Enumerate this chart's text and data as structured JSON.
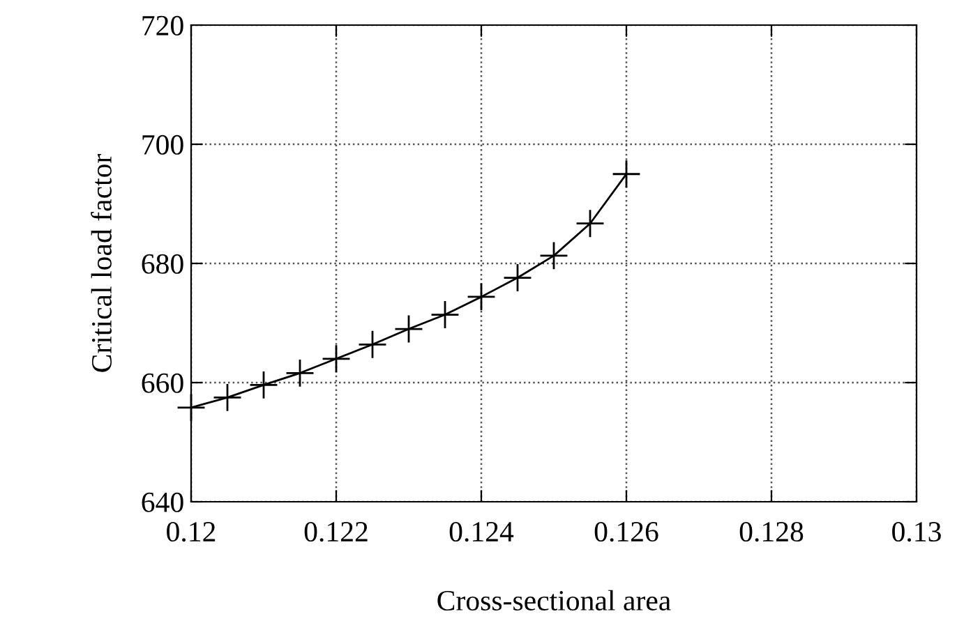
{
  "chart_data": {
    "type": "line",
    "xlabel": "Cross-sectional area",
    "ylabel": "Critical load factor",
    "x": [
      0.12,
      0.1205,
      0.121,
      0.1215,
      0.122,
      0.1225,
      0.123,
      0.1235,
      0.124,
      0.1245,
      0.125,
      0.1255,
      0.126
    ],
    "series": [
      {
        "color": "#000000",
        "values": [
          655.8,
          657.5,
          659.6,
          661.6,
          664.0,
          666.4,
          669.0,
          671.4,
          674.4,
          677.6,
          681.3,
          686.7,
          695.0
        ]
      }
    ],
    "xlim": [
      0.12,
      0.13
    ],
    "xticks": [
      0.12,
      0.122,
      0.124,
      0.126,
      0.128,
      0.13
    ],
    "ylim": [
      640,
      720
    ],
    "yticks": [
      640,
      660,
      680,
      700,
      720
    ],
    "grid": true,
    "marker": "cross",
    "line_style": "solid",
    "legend": false
  }
}
